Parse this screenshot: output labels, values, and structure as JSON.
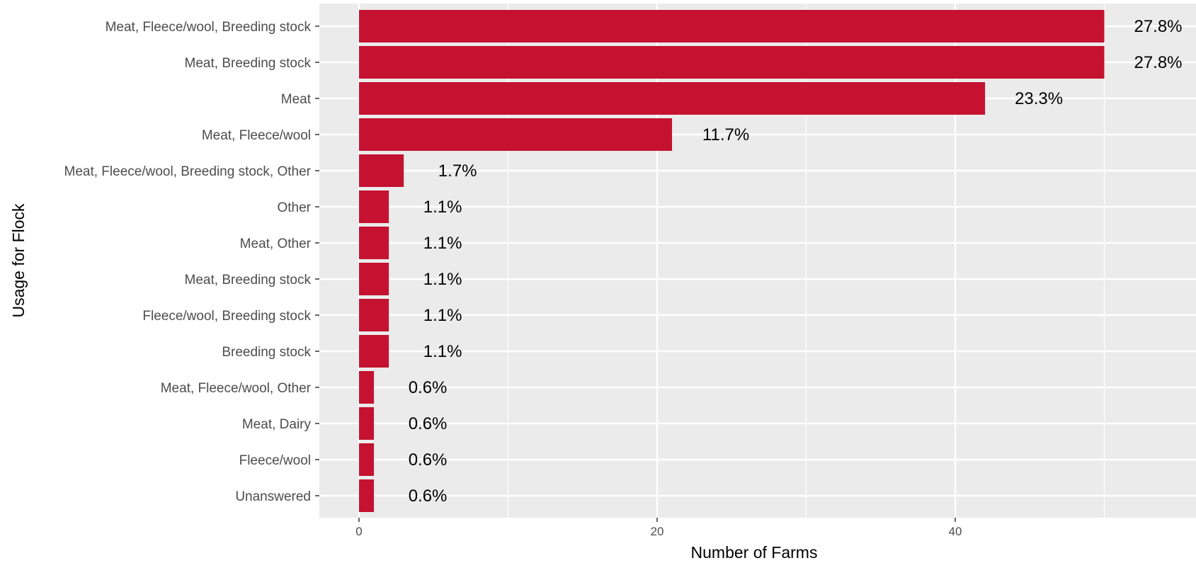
{
  "chart_data": {
    "type": "bar",
    "orientation": "horizontal",
    "categories": [
      "Meat, Fleece/wool, Breeding stock",
      "Meat, Breeding stock",
      "Meat",
      "Meat, Fleece/wool",
      "Meat, Fleece/wool, Breeding stock, Other",
      "Other",
      "Meat, Other",
      "Meat, Breeding stock",
      "Fleece/wool, Breeding stock",
      "Breeding stock",
      "Meat, Fleece/wool, Other",
      "Meat,  Dairy",
      "Fleece/wool ",
      "Unanswered"
    ],
    "values": [
      50,
      50,
      42,
      21,
      3,
      2,
      2,
      2,
      2,
      2,
      1,
      1,
      1,
      1
    ],
    "data_labels": [
      "27.8%",
      "27.8%",
      "23.3%",
      "11.7%",
      "1.7%",
      "1.1%",
      "1.1%",
      "1.1%",
      "1.1%",
      "1.1%",
      "0.6%",
      "0.6%",
      "0.6%",
      "0.6%"
    ],
    "xlabel": "Number of Farms",
    "ylabel": "Usage for Flock",
    "xlim": [
      -2.7,
      56
    ],
    "xticks": [
      0,
      20,
      40
    ],
    "xtick_labels": [
      "0",
      "20",
      "40"
    ],
    "grid": true,
    "bar_color": "#c41230",
    "panel_color": "#ebebeb"
  }
}
